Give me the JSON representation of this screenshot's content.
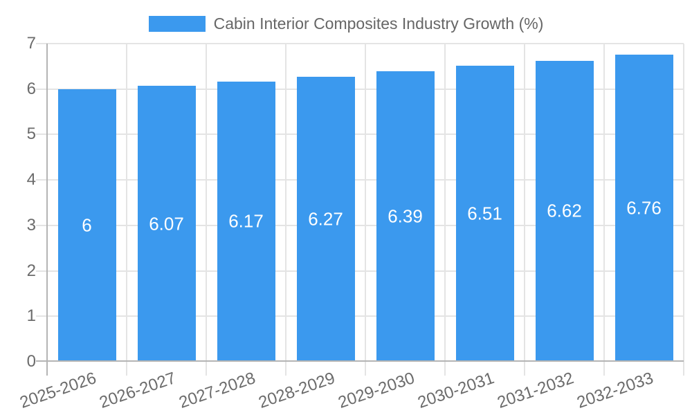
{
  "chart_data": {
    "type": "bar",
    "title": "Cabin Interior Composites Industry Growth (%)",
    "categories": [
      "2025-2026",
      "2026-2027",
      "2027-2028",
      "2028-2029",
      "2029-2030",
      "2030-2031",
      "2031-2032",
      "2032-2033"
    ],
    "values": [
      6,
      6.07,
      6.17,
      6.27,
      6.39,
      6.51,
      6.62,
      6.76
    ],
    "value_labels": [
      "6",
      "6.07",
      "6.17",
      "6.27",
      "6.39",
      "6.51",
      "6.62",
      "6.76"
    ],
    "xlabel": "",
    "ylabel": "",
    "ylim": [
      0,
      7
    ],
    "ytick_labels": [
      "0",
      "1",
      "2",
      "3",
      "4",
      "5",
      "6",
      "7"
    ],
    "grid": true,
    "legend_position": "top",
    "bar_label_position": "center-of-bar",
    "colors": {
      "bar": "#3B99EE",
      "grid": "#e4e4e4",
      "axis": "#b4b4b4",
      "tick_text": "#6b6b6b",
      "legend_text": "#666666",
      "bar_label_text": "#ffffff",
      "background": "#ffffff"
    }
  }
}
